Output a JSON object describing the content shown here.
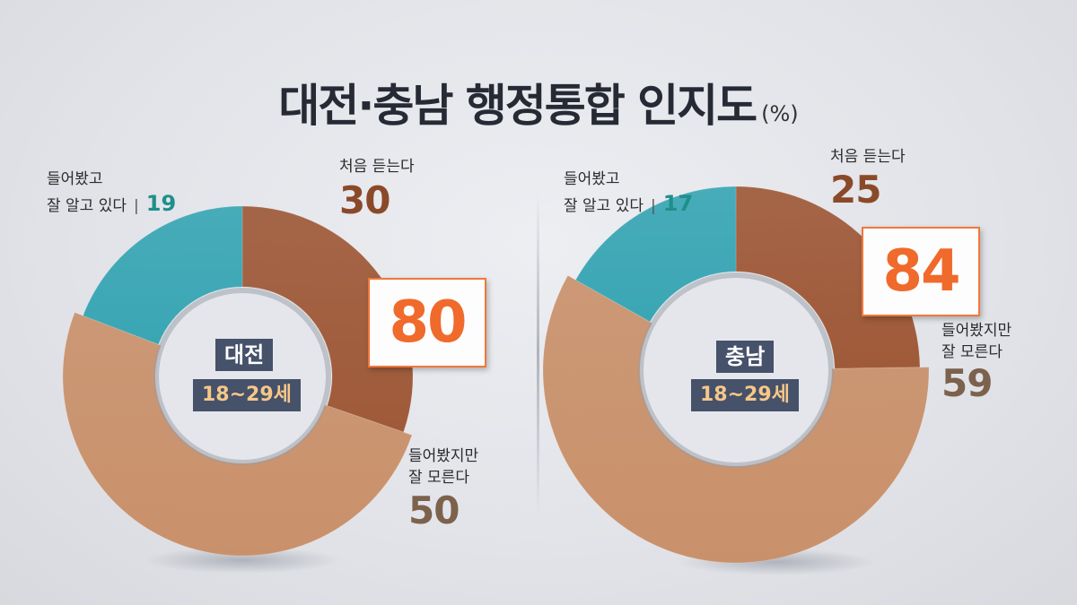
{
  "title": "대전·충남 행정통합 인지도",
  "unit": "(%)",
  "chart_data": [
    {
      "type": "pie",
      "region": "대전",
      "age_group": "18~29세",
      "total": "80",
      "categories": [
        "들어봤고 잘 알고 있다",
        "처음 듣는다",
        "들어봤지만 잘 모른다"
      ],
      "values": [
        19,
        30,
        50
      ],
      "labels": {
        "aware_1": "들어봤고",
        "aware_2": "잘 알고 있다",
        "aware_sep": "|",
        "aware_value": "19",
        "first_time": "처음 듣는다",
        "first_time_value": "30",
        "unsure_1": "들어봤지만",
        "unsure_2": "잘 모른다",
        "unsure_value": "50"
      },
      "colors": {
        "aware": "#3aa6b4",
        "first_time": "#9f5a39",
        "unsure": "#c9916b"
      }
    },
    {
      "type": "pie",
      "region": "충남",
      "age_group": "18~29세",
      "total": "84",
      "categories": [
        "들어봤고 잘 알고 있다",
        "처음 듣는다",
        "들어봤지만 잘 모른다"
      ],
      "values": [
        17,
        25,
        59
      ],
      "labels": {
        "aware_1": "들어봤고",
        "aware_2": "잘 알고 있다",
        "aware_sep": "|",
        "aware_value": "17",
        "first_time": "처음 듣는다",
        "first_time_value": "25",
        "unsure_1": "들어봤지만",
        "unsure_2": "잘 모른다",
        "unsure_value": "59"
      },
      "colors": {
        "aware": "#3aa6b4",
        "first_time": "#9f5a39",
        "unsure": "#c9916b"
      }
    }
  ],
  "colors": {
    "first_time_text": "#8a4a2a",
    "unsure_text": "#7c624c",
    "aware_text": "#1f8f8c",
    "total_box": "#f06a2c"
  }
}
